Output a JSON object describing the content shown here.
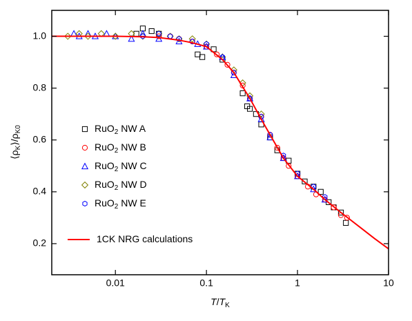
{
  "chart_data": {
    "type": "scatter",
    "xlabel": [
      "T",
      "/",
      "T",
      "K"
    ],
    "ylabel": [
      "⟨ρ",
      "K",
      "⟩/ρ",
      "K0"
    ],
    "xscale": "log",
    "xlim": [
      0.002,
      10
    ],
    "xticks": [
      0.01,
      0.1,
      1,
      10
    ],
    "ylim": [
      0.08,
      1.1
    ],
    "yticks": [
      0.2,
      0.4,
      0.6,
      0.8,
      {
        "value": 1.0,
        "label": "1.0"
      }
    ],
    "legend": "left",
    "series": [
      {
        "name": "RuO2 NW A",
        "color": "#000000",
        "marker": "square",
        "x": [
          0.017,
          0.02,
          0.025,
          0.03,
          0.08,
          0.09,
          0.12,
          0.15,
          0.25,
          0.28,
          0.3,
          0.35,
          0.4,
          0.5,
          0.6,
          0.8,
          1.0,
          1.2,
          1.5,
          1.8,
          2.2,
          2.5,
          3.0,
          3.4
        ],
        "values": [
          1.01,
          1.03,
          1.02,
          1.01,
          0.93,
          0.92,
          0.95,
          0.91,
          0.78,
          0.73,
          0.72,
          0.7,
          0.66,
          0.61,
          0.56,
          0.52,
          0.47,
          0.44,
          0.42,
          0.4,
          0.36,
          0.34,
          0.32,
          0.28
        ]
      },
      {
        "name": "RuO2 NW B",
        "color": "#ff0000",
        "marker": "circle",
        "x": [
          0.03,
          0.04,
          0.05,
          0.07,
          0.1,
          0.13,
          0.17,
          0.2,
          0.25,
          0.3,
          0.4,
          0.5,
          0.6,
          0.7,
          0.8,
          1.0,
          1.3,
          1.6,
          2.0,
          2.5,
          3.0,
          3.5
        ],
        "values": [
          1.0,
          1.0,
          0.99,
          0.98,
          0.96,
          0.93,
          0.89,
          0.86,
          0.81,
          0.76,
          0.69,
          0.62,
          0.57,
          0.53,
          0.5,
          0.46,
          0.42,
          0.39,
          0.37,
          0.34,
          0.31,
          0.3
        ]
      },
      {
        "name": "RuO2 NW C",
        "color": "#0000ff",
        "marker": "triangle",
        "x": [
          0.0035,
          0.004,
          0.005,
          0.006,
          0.008,
          0.01,
          0.015,
          0.02,
          0.03,
          0.05,
          0.08,
          0.1,
          0.15,
          0.2,
          0.3,
          0.4,
          0.5,
          0.7,
          1.0,
          1.5,
          2.0
        ],
        "values": [
          1.01,
          1.0,
          1.01,
          1.0,
          1.01,
          1.0,
          0.99,
          1.01,
          0.99,
          0.98,
          0.97,
          0.96,
          0.92,
          0.85,
          0.76,
          0.68,
          0.61,
          0.53,
          0.46,
          0.41,
          0.37
        ]
      },
      {
        "name": "RuO2 NW D",
        "color": "#808000",
        "marker": "diamond",
        "x": [
          0.003,
          0.004,
          0.005,
          0.007,
          0.01,
          0.015,
          0.02,
          0.03,
          0.04,
          0.05,
          0.07,
          0.1,
          0.15,
          0.2,
          0.25,
          0.3,
          0.4
        ],
        "values": [
          1.0,
          1.01,
          1.0,
          1.01,
          1.0,
          1.01,
          1.0,
          1.01,
          1.0,
          0.99,
          0.99,
          0.97,
          0.92,
          0.87,
          0.82,
          0.77,
          0.7
        ]
      },
      {
        "name": "RuO2 NW E",
        "color": "#0000ff",
        "marker": "hexagon",
        "x": [
          0.02,
          0.03,
          0.04,
          0.05,
          0.07,
          0.1,
          0.15,
          0.2,
          0.3,
          0.4,
          0.5,
          0.7,
          1.0,
          1.5,
          2.0
        ],
        "values": [
          1.0,
          1.01,
          1.0,
          0.99,
          0.98,
          0.97,
          0.92,
          0.86,
          0.76,
          0.69,
          0.62,
          0.54,
          0.47,
          0.42,
          0.38
        ]
      },
      {
        "name": "1CK NRG calculations",
        "color": "#ff0000",
        "marker": "line",
        "x": [
          0.002,
          0.005,
          0.01,
          0.02,
          0.03,
          0.05,
          0.07,
          0.1,
          0.15,
          0.2,
          0.3,
          0.4,
          0.5,
          0.7,
          1,
          1.5,
          2,
          3,
          5,
          7,
          10
        ],
        "values": [
          1.0,
          1.0,
          1.0,
          0.998,
          0.995,
          0.985,
          0.975,
          0.96,
          0.91,
          0.86,
          0.76,
          0.68,
          0.62,
          0.53,
          0.46,
          0.41,
          0.37,
          0.32,
          0.26,
          0.22,
          0.18
        ]
      }
    ]
  }
}
